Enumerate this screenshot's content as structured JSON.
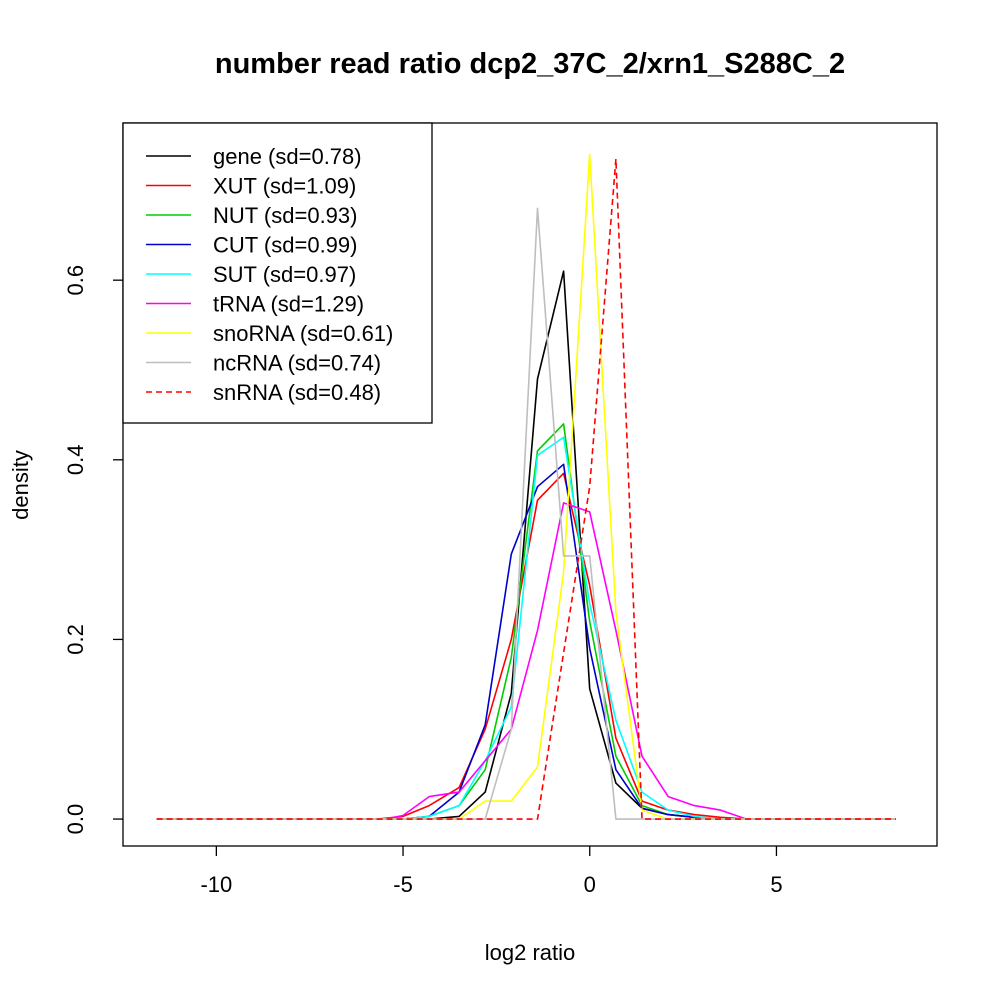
{
  "chart_data": {
    "type": "line",
    "title": "number read ratio dcp2_37C_2/xrn1_S288C_2",
    "xlabel": "log2 ratio",
    "ylabel": "density",
    "xlim": [
      -12.5,
      9.3
    ],
    "ylim": [
      -0.03,
      0.775
    ],
    "xticks": [
      -10,
      -5,
      0,
      5
    ],
    "yticks": [
      0.0,
      0.2,
      0.4,
      0.6
    ],
    "legend_position": "top-left",
    "grid": false,
    "series": [
      {
        "name": "gene (sd=0.78)",
        "color": "#000000",
        "dash": false,
        "points": [
          [
            -11.6,
            0
          ],
          [
            -6,
            0
          ],
          [
            -5,
            0
          ],
          [
            -4.3,
            0
          ],
          [
            -3.5,
            0.003
          ],
          [
            -2.8,
            0.03
          ],
          [
            -2.1,
            0.14
          ],
          [
            -1.4,
            0.49
          ],
          [
            -0.7,
            0.61
          ],
          [
            0,
            0.145
          ],
          [
            0.7,
            0.04
          ],
          [
            1.4,
            0.012
          ],
          [
            2.1,
            0.005
          ],
          [
            2.8,
            0.002
          ],
          [
            3.5,
            0
          ],
          [
            4.2,
            0
          ],
          [
            5,
            0
          ],
          [
            8.2,
            0
          ]
        ]
      },
      {
        "name": "XUT (sd=1.09)",
        "color": "#ff0000",
        "dash": false,
        "points": [
          [
            -11.6,
            0
          ],
          [
            -5.7,
            0
          ],
          [
            -5,
            0.003
          ],
          [
            -4.3,
            0.015
          ],
          [
            -3.5,
            0.035
          ],
          [
            -2.8,
            0.1
          ],
          [
            -2.1,
            0.2
          ],
          [
            -1.4,
            0.355
          ],
          [
            -0.7,
            0.385
          ],
          [
            0,
            0.26
          ],
          [
            0.7,
            0.09
          ],
          [
            1.4,
            0.02
          ],
          [
            2.1,
            0.01
          ],
          [
            2.8,
            0.005
          ],
          [
            3.5,
            0.002
          ],
          [
            4.2,
            0
          ],
          [
            5,
            0
          ],
          [
            8.2,
            0
          ]
        ]
      },
      {
        "name": "NUT (sd=0.93)",
        "color": "#00cd00",
        "dash": false,
        "points": [
          [
            -11.6,
            0
          ],
          [
            -6,
            0
          ],
          [
            -5,
            0
          ],
          [
            -4.3,
            0.003
          ],
          [
            -3.5,
            0.015
          ],
          [
            -2.8,
            0.055
          ],
          [
            -2.1,
            0.18
          ],
          [
            -1.4,
            0.41
          ],
          [
            -0.7,
            0.44
          ],
          [
            0,
            0.22
          ],
          [
            0.7,
            0.07
          ],
          [
            1.4,
            0.015
          ],
          [
            2.1,
            0.005
          ],
          [
            2.8,
            0.002
          ],
          [
            3.5,
            0
          ],
          [
            5,
            0
          ],
          [
            8.2,
            0
          ]
        ]
      },
      {
        "name": "CUT (sd=0.99)",
        "color": "#0000cd",
        "dash": false,
        "points": [
          [
            -11.6,
            0
          ],
          [
            -6,
            0
          ],
          [
            -5,
            0
          ],
          [
            -4.3,
            0.003
          ],
          [
            -3.5,
            0.03
          ],
          [
            -2.8,
            0.105
          ],
          [
            -2.1,
            0.295
          ],
          [
            -1.4,
            0.37
          ],
          [
            -0.7,
            0.395
          ],
          [
            0,
            0.19
          ],
          [
            0.7,
            0.055
          ],
          [
            1.4,
            0.012
          ],
          [
            2.1,
            0.005
          ],
          [
            2.8,
            0.002
          ],
          [
            3.5,
            0
          ],
          [
            5,
            0
          ],
          [
            8.2,
            0
          ]
        ]
      },
      {
        "name": "SUT (sd=0.97)",
        "color": "#00ffff",
        "dash": false,
        "points": [
          [
            -11.6,
            0
          ],
          [
            -6,
            0
          ],
          [
            -5,
            0
          ],
          [
            -4.3,
            0.003
          ],
          [
            -3.5,
            0.015
          ],
          [
            -2.8,
            0.065
          ],
          [
            -2.1,
            0.125
          ],
          [
            -1.4,
            0.405
          ],
          [
            -0.7,
            0.425
          ],
          [
            0,
            0.24
          ],
          [
            0.7,
            0.11
          ],
          [
            1.4,
            0.03
          ],
          [
            2.1,
            0.01
          ],
          [
            2.8,
            0.003
          ],
          [
            3.5,
            0
          ],
          [
            5,
            0
          ],
          [
            8.2,
            0
          ]
        ]
      },
      {
        "name": "tRNA (sd=1.29)",
        "color": "#ff00ff",
        "dash": false,
        "points": [
          [
            -11.6,
            0
          ],
          [
            -6,
            0
          ],
          [
            -5.5,
            0
          ],
          [
            -5,
            0.004
          ],
          [
            -4.3,
            0.025
          ],
          [
            -3.5,
            0.03
          ],
          [
            -2.8,
            0.065
          ],
          [
            -2.1,
            0.1
          ],
          [
            -1.4,
            0.21
          ],
          [
            -0.7,
            0.352
          ],
          [
            0,
            0.342
          ],
          [
            0.7,
            0.21
          ],
          [
            1.4,
            0.07
          ],
          [
            2.1,
            0.025
          ],
          [
            2.8,
            0.015
          ],
          [
            3.5,
            0.01
          ],
          [
            4.2,
            0
          ],
          [
            5,
            0
          ],
          [
            8.2,
            0
          ]
        ]
      },
      {
        "name": "snoRNA (sd=0.61)",
        "color": "#ffff00",
        "dash": false,
        "points": [
          [
            -11.6,
            0
          ],
          [
            -3.5,
            0
          ],
          [
            -2.8,
            0.02
          ],
          [
            -2.1,
            0.02
          ],
          [
            -1.4,
            0.058
          ],
          [
            -0.7,
            0.275
          ],
          [
            0,
            0.74
          ],
          [
            0.7,
            0.23
          ],
          [
            1.4,
            0.01
          ],
          [
            2.1,
            0
          ],
          [
            8.2,
            0
          ]
        ]
      },
      {
        "name": "ncRNA (sd=0.74)",
        "color": "#bebebe",
        "dash": false,
        "points": [
          [
            -11.6,
            0
          ],
          [
            -2.8,
            0
          ],
          [
            -2.1,
            0.1
          ],
          [
            -1.4,
            0.68
          ],
          [
            -0.7,
            0.293
          ],
          [
            0,
            0.293
          ],
          [
            0.7,
            0
          ],
          [
            8.2,
            0
          ]
        ]
      },
      {
        "name": "snRNA (sd=0.48)",
        "color": "#ff0000",
        "dash": true,
        "points": [
          [
            -11.6,
            0
          ],
          [
            -1.4,
            0
          ],
          [
            0,
            0.37
          ],
          [
            0.7,
            0.735
          ],
          [
            1.4,
            0
          ],
          [
            8.2,
            0
          ]
        ]
      }
    ]
  }
}
